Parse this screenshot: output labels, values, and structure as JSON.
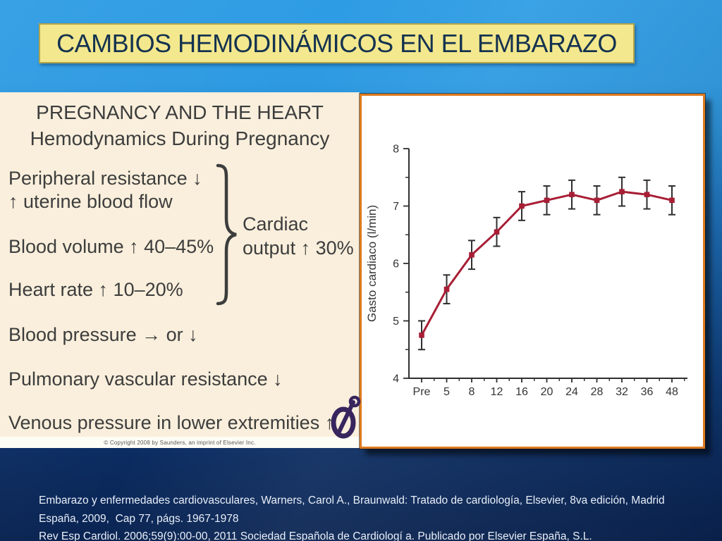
{
  "slide_title": "CAMBIOS HEMODINÁMICOS EN EL EMBARAZO",
  "figure_panel": {
    "heading_line1": "PREGNANCY AND THE HEART",
    "heading_line2": "Hemodynamics During Pregnancy",
    "items": [
      "Peripheral resistance ↓",
      "↑ uterine blood flow",
      "Blood volume ↑ 40–45%",
      "Heart rate ↑ 10–20%",
      "Blood pressure → or ↓",
      "Pulmonary vascular resistance ↓",
      "Venous pressure in lower extremities ↑"
    ],
    "brace_label": {
      "line1": "Cardiac",
      "line2": "output ↑ 30%"
    },
    "copyright": "© Copyright 2008 by Saunders, an imprint of Elsevier Inc.",
    "logo_icon": "saunders-elsevier-logo"
  },
  "chart_data": {
    "type": "line",
    "title": "",
    "xlabel": "",
    "ylabel": "Gasto cardiaco (l/min)",
    "categories": [
      "Pre",
      "5",
      "8",
      "12",
      "16",
      "20",
      "24",
      "28",
      "32",
      "36",
      "48"
    ],
    "series": [
      {
        "name": "Gasto cardiaco",
        "values": [
          4.75,
          5.55,
          6.15,
          6.55,
          7.0,
          7.1,
          7.2,
          7.1,
          7.25,
          7.2,
          7.1
        ],
        "error_low": [
          4.5,
          5.3,
          5.9,
          6.3,
          6.75,
          6.85,
          6.95,
          6.85,
          7.0,
          6.95,
          6.85
        ],
        "error_high": [
          5.0,
          5.8,
          6.4,
          6.8,
          7.25,
          7.35,
          7.45,
          7.35,
          7.5,
          7.45,
          7.35
        ]
      }
    ],
    "ylim": [
      4,
      8
    ],
    "yticks": [
      4,
      5,
      6,
      7,
      8
    ],
    "minor_ticks": true,
    "grid": false,
    "legend": "none",
    "error_bars": true,
    "marker": "square",
    "line_color": "#a81e35",
    "axis_color": "#2f2f2f",
    "tick_label_color": "#333333"
  },
  "footer": {
    "lines": [
      "Embarazo y enfermedades cardiovasculares, Warners, Carol A., Braunwald: Tratado de cardiología, Elsevier, 8va edición, Madrid",
      "España, 2009,  Cap 77, págs. 1967-1978",
      "Rev Esp Cardiol. 2006;59(9):00-00, 2011 Sociedad Española de Cardiologí a. Publicado por Elsevier España, S.L."
    ]
  },
  "colors": {
    "banner_bg": "#f3e88d",
    "banner_border": "#b3a54a",
    "banner_text": "#143250",
    "panel_bg": "#f9efdc",
    "panel_text": "#3d3d3d",
    "chart_border": "#dd7a1f",
    "bg_top": "#2e9ce4",
    "bg_bottom": "#0a2452",
    "footer_text": "#e9eff9",
    "logo_purple": "#37255e"
  }
}
